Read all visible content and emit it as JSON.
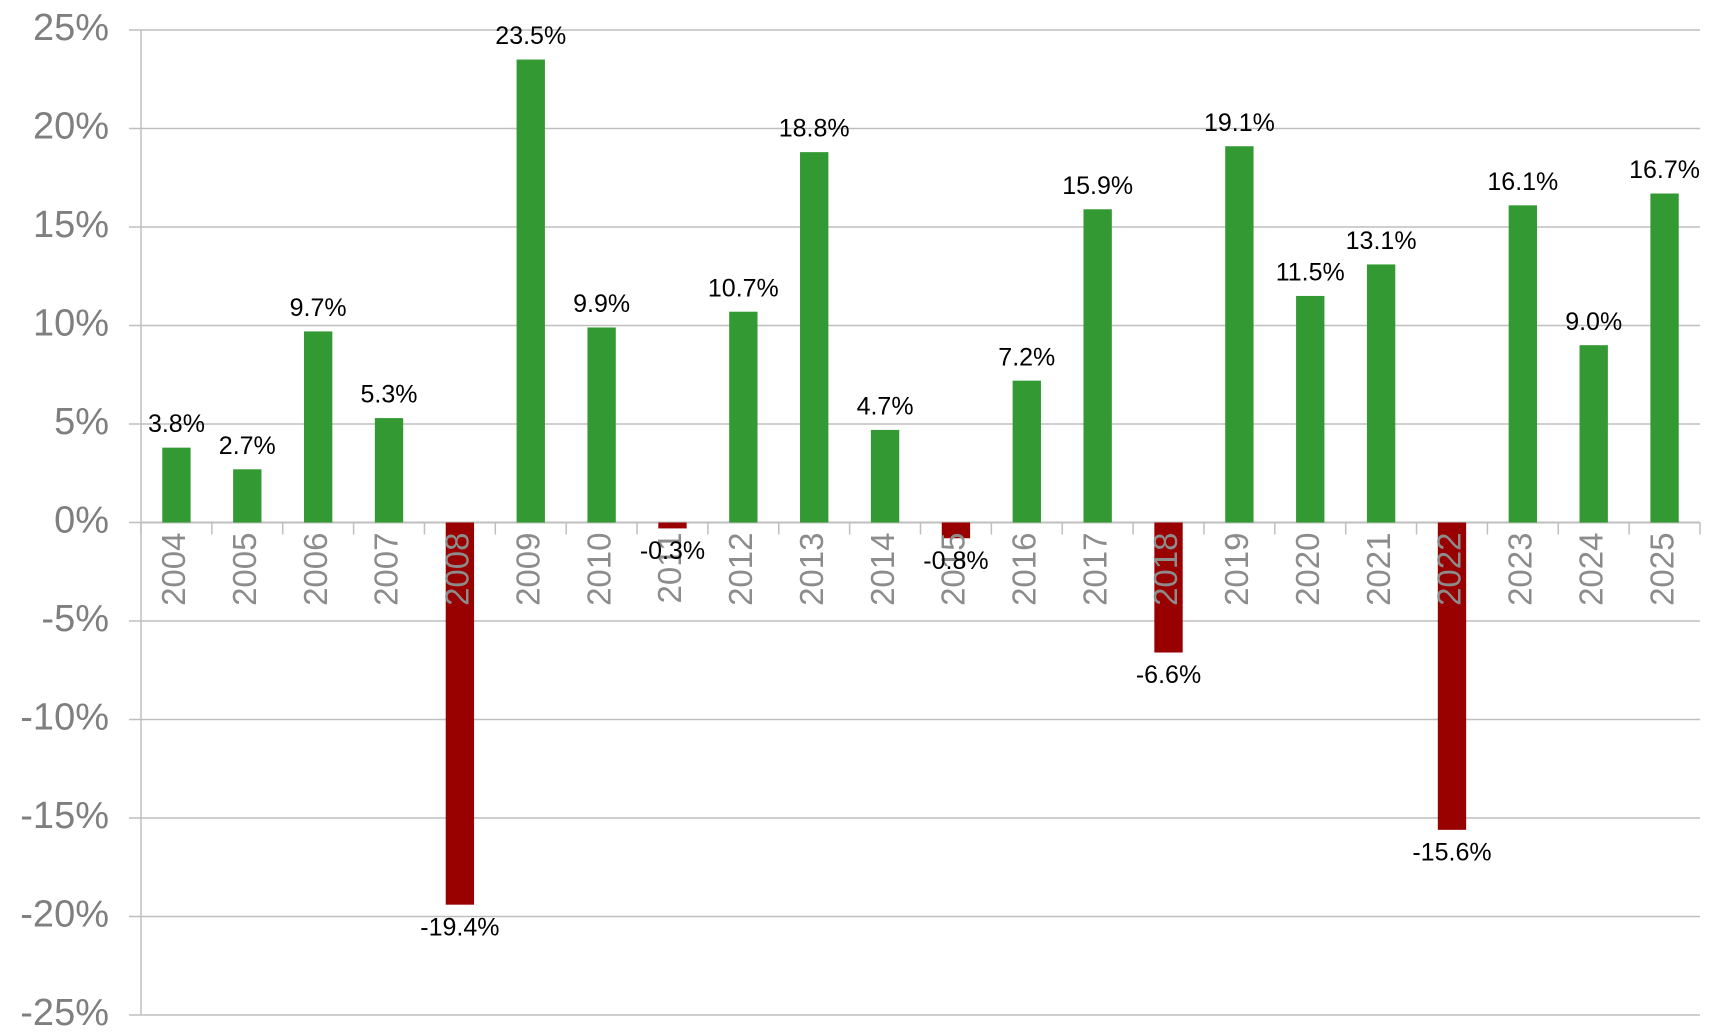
{
  "chart_data": {
    "type": "bar",
    "categories": [
      "2004",
      "2005",
      "2006",
      "2007",
      "2008",
      "2009",
      "2010",
      "2011",
      "2012",
      "2013",
      "2014",
      "2015",
      "2016",
      "2017",
      "2018",
      "2019",
      "2020",
      "2021",
      "2022",
      "2023",
      "2024",
      "2025"
    ],
    "values": [
      3.8,
      2.7,
      9.7,
      5.3,
      -19.4,
      23.5,
      9.9,
      -0.3,
      10.7,
      18.8,
      4.7,
      -0.8,
      7.2,
      15.9,
      -6.6,
      19.1,
      11.5,
      13.1,
      -15.6,
      16.1,
      9.0,
      16.7
    ],
    "value_labels": [
      "3.8%",
      "2.7%",
      "9.7%",
      "5.3%",
      "-19.4%",
      "23.5%",
      "9.9%",
      "-0.3%",
      "10.7%",
      "18.8%",
      "4.7%",
      "-0.8%",
      "7.2%",
      "15.9%",
      "-6.6%",
      "19.1%",
      "11.5%",
      "13.1%",
      "-15.6%",
      "16.1%",
      "9.0%",
      "16.7%"
    ],
    "colors": [
      "#339933",
      "#339933",
      "#339933",
      "#339933",
      "#990000",
      "#339933",
      "#339933",
      "#990000",
      "#339933",
      "#339933",
      "#339933",
      "#990000",
      "#339933",
      "#339933",
      "#990000",
      "#339933",
      "#339933",
      "#339933",
      "#990000",
      "#339933",
      "#339933",
      "#339933"
    ],
    "ylim": [
      -25,
      25
    ],
    "yticks": [
      {
        "value": -25,
        "label": "-25%"
      },
      {
        "value": -20,
        "label": "-20%"
      },
      {
        "value": -15,
        "label": "-15%"
      },
      {
        "value": -10,
        "label": "-10%"
      },
      {
        "value": -5,
        "label": "-5%"
      },
      {
        "value": 0,
        "label": "0%"
      },
      {
        "value": 5,
        "label": "5%"
      },
      {
        "value": 10,
        "label": "10%"
      },
      {
        "value": 15,
        "label": "15%"
      },
      {
        "value": 20,
        "label": "20%"
      },
      {
        "value": 25,
        "label": "25%"
      }
    ],
    "grid": true
  }
}
